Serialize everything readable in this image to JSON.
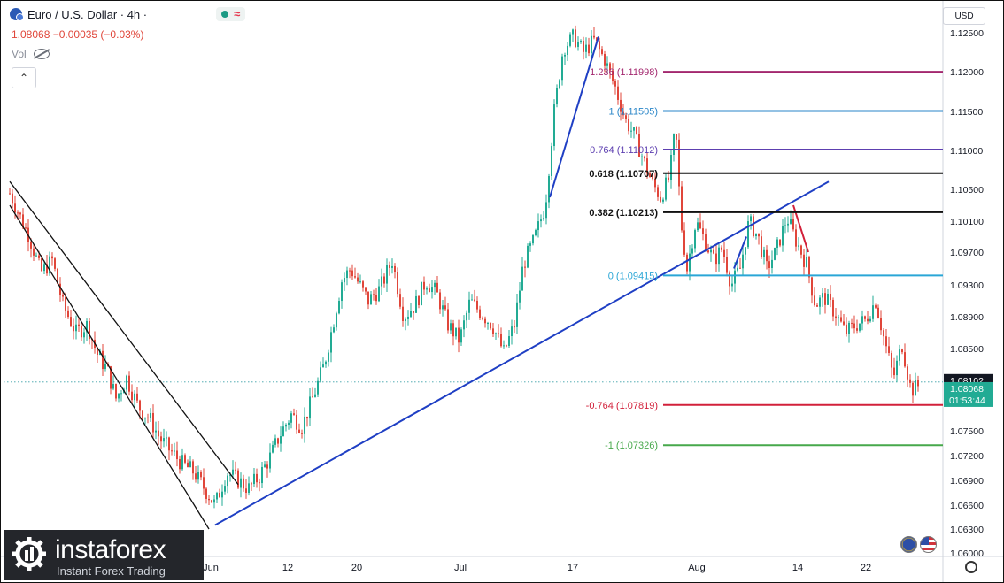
{
  "header": {
    "title": "Euro / U.S. Dollar · 4h ·",
    "quote": "1.08068 −0.00035 (−0.03%)",
    "vol_label": "Vol",
    "currency": "USD",
    "collapse_glyph": "⌃",
    "wave_glyph": "≈"
  },
  "logo": {
    "name": "instaforex",
    "tagline": "Instant Forex Trading"
  },
  "price_labels": {
    "last_close": "1.08102",
    "current_price": "1.08068",
    "countdown": "01:53:44"
  },
  "chart_data": {
    "type": "candlestick",
    "symbol": "EUR/USD",
    "timeframe": "4h",
    "y_ticks": [
      "1.12500",
      "1.12000",
      "1.11500",
      "1.11000",
      "1.10500",
      "1.10100",
      "1.09700",
      "1.09300",
      "1.08900",
      "1.08500",
      "1.08100",
      "1.07500",
      "1.07200",
      "1.06900",
      "1.06600",
      "1.06300",
      "1.06000"
    ],
    "x_ticks": [
      "Jun",
      "12",
      "20",
      "Jul",
      "17",
      "Aug",
      "14",
      "22"
    ],
    "close_path": [
      [
        0,
        1.1045
      ],
      [
        10,
        1.102
      ],
      [
        22,
        1.099
      ],
      [
        35,
        1.0945
      ],
      [
        48,
        1.096
      ],
      [
        60,
        1.0905
      ],
      [
        75,
        1.087
      ],
      [
        88,
        1.088
      ],
      [
        98,
        1.0845
      ],
      [
        110,
        1.0825
      ],
      [
        120,
        1.079
      ],
      [
        132,
        1.0815
      ],
      [
        145,
        1.078
      ],
      [
        158,
        1.0765
      ],
      [
        170,
        1.074
      ],
      [
        182,
        1.0725
      ],
      [
        195,
        1.071
      ],
      [
        208,
        1.07
      ],
      [
        220,
        1.068
      ],
      [
        232,
        1.066
      ],
      [
        245,
        1.07
      ],
      [
        258,
        1.069
      ],
      [
        270,
        1.068
      ],
      [
        282,
        1.0695
      ],
      [
        295,
        1.072
      ],
      [
        305,
        1.0745
      ],
      [
        318,
        1.077
      ],
      [
        330,
        1.0755
      ],
      [
        342,
        1.079
      ],
      [
        355,
        1.083
      ],
      [
        365,
        1.088
      ],
      [
        375,
        1.0935
      ],
      [
        385,
        1.095
      ],
      [
        395,
        1.093
      ],
      [
        405,
        1.091
      ],
      [
        418,
        1.0925
      ],
      [
        432,
        1.096
      ],
      [
        445,
        1.089
      ],
      [
        458,
        1.0905
      ],
      [
        470,
        1.0935
      ],
      [
        482,
        1.092
      ],
      [
        495,
        1.088
      ],
      [
        508,
        1.086
      ],
      [
        520,
        1.091
      ],
      [
        532,
        1.0895
      ],
      [
        545,
        1.088
      ],
      [
        558,
        1.0845
      ],
      [
        570,
        1.088
      ],
      [
        580,
        1.0955
      ],
      [
        592,
        1.0985
      ],
      [
        605,
        1.103
      ],
      [
        615,
        1.115
      ],
      [
        625,
        1.123
      ],
      [
        637,
        1.1245
      ],
      [
        648,
        1.1225
      ],
      [
        660,
        1.124
      ],
      [
        672,
        1.1215
      ],
      [
        684,
        1.118
      ],
      [
        695,
        1.114
      ],
      [
        705,
        1.112
      ],
      [
        715,
        1.109
      ],
      [
        725,
        1.106
      ],
      [
        735,
        1.104
      ],
      [
        745,
        1.1065
      ],
      [
        752,
        1.113
      ],
      [
        758,
        1.101
      ],
      [
        765,
        1.095
      ],
      [
        775,
        1.101
      ],
      [
        785,
        1.0985
      ],
      [
        795,
        1.096
      ],
      [
        805,
        1.0975
      ],
      [
        815,
        1.093
      ],
      [
        825,
        1.095
      ],
      [
        835,
        1.101
      ],
      [
        845,
        1.099
      ],
      [
        855,
        1.095
      ],
      [
        865,
        1.097
      ],
      [
        878,
        1.1015
      ],
      [
        888,
        1.0985
      ],
      [
        900,
        1.0955
      ],
      [
        910,
        1.0905
      ],
      [
        920,
        1.0915
      ],
      [
        932,
        1.0895
      ],
      [
        944,
        1.087
      ],
      [
        956,
        1.088
      ],
      [
        966,
        1.0885
      ],
      [
        978,
        1.091
      ],
      [
        988,
        1.086
      ],
      [
        998,
        1.0815
      ],
      [
        1008,
        1.0855
      ],
      [
        1018,
        1.08
      ],
      [
        1028,
        1.0807
      ]
    ],
    "trend_lines": [
      {
        "name": "channel-upper",
        "color": "#111111",
        "from": [
          0,
          1.106
        ],
        "to": [
          258,
          1.0685
        ]
      },
      {
        "name": "channel-lower",
        "color": "#111111",
        "from": [
          0,
          1.103
        ],
        "to": [
          225,
          1.063
        ]
      },
      {
        "name": "uptrend-support",
        "color": "#1f3fc4",
        "from": [
          232,
          1.0635
        ],
        "to": [
          925,
          1.106
        ]
      },
      {
        "name": "impulse-jul",
        "color": "#1f3fc4",
        "from": [
          610,
          1.104
        ],
        "to": [
          665,
          1.1245
        ]
      },
      {
        "name": "impulse-aug",
        "color": "#1f3fc4",
        "from": [
          818,
          1.095
        ],
        "to": [
          832,
          1.099
        ]
      },
      {
        "name": "decline-aug",
        "color": "#d2203a",
        "from": [
          885,
          1.103
        ],
        "to": [
          902,
          1.097
        ]
      }
    ],
    "fib_levels": [
      {
        "ratio": "1.236",
        "value": "1.11998",
        "color": "#a3276e",
        "label_from": "start"
      },
      {
        "ratio": "1",
        "value": "1.11505",
        "color": "#2a86c8",
        "label_from": "start"
      },
      {
        "ratio": "0.764",
        "value": "1.11012",
        "color": "#5d3fb0",
        "label_from": "start"
      },
      {
        "ratio": "0.618",
        "value": "1.10707",
        "color": "#111111",
        "label_from": "start"
      },
      {
        "ratio": "0.382",
        "value": "1.10213",
        "color": "#111111",
        "label_from": "start"
      },
      {
        "ratio": "0",
        "value": "1.09415",
        "color": "#2aa6d6",
        "label_from": "start"
      },
      {
        "ratio": "-0.764",
        "value": "1.07819",
        "color": "#d2203a",
        "label_from": "start"
      },
      {
        "ratio": "-1",
        "value": "1.07326",
        "color": "#47a84b",
        "label_from": "start"
      }
    ],
    "current_price": 1.08068,
    "last_close": 1.08102,
    "colors": {
      "up": "#22ab94",
      "down": "#e0463a",
      "price_tag": "#22ab94",
      "last_tag": "#131722"
    }
  }
}
